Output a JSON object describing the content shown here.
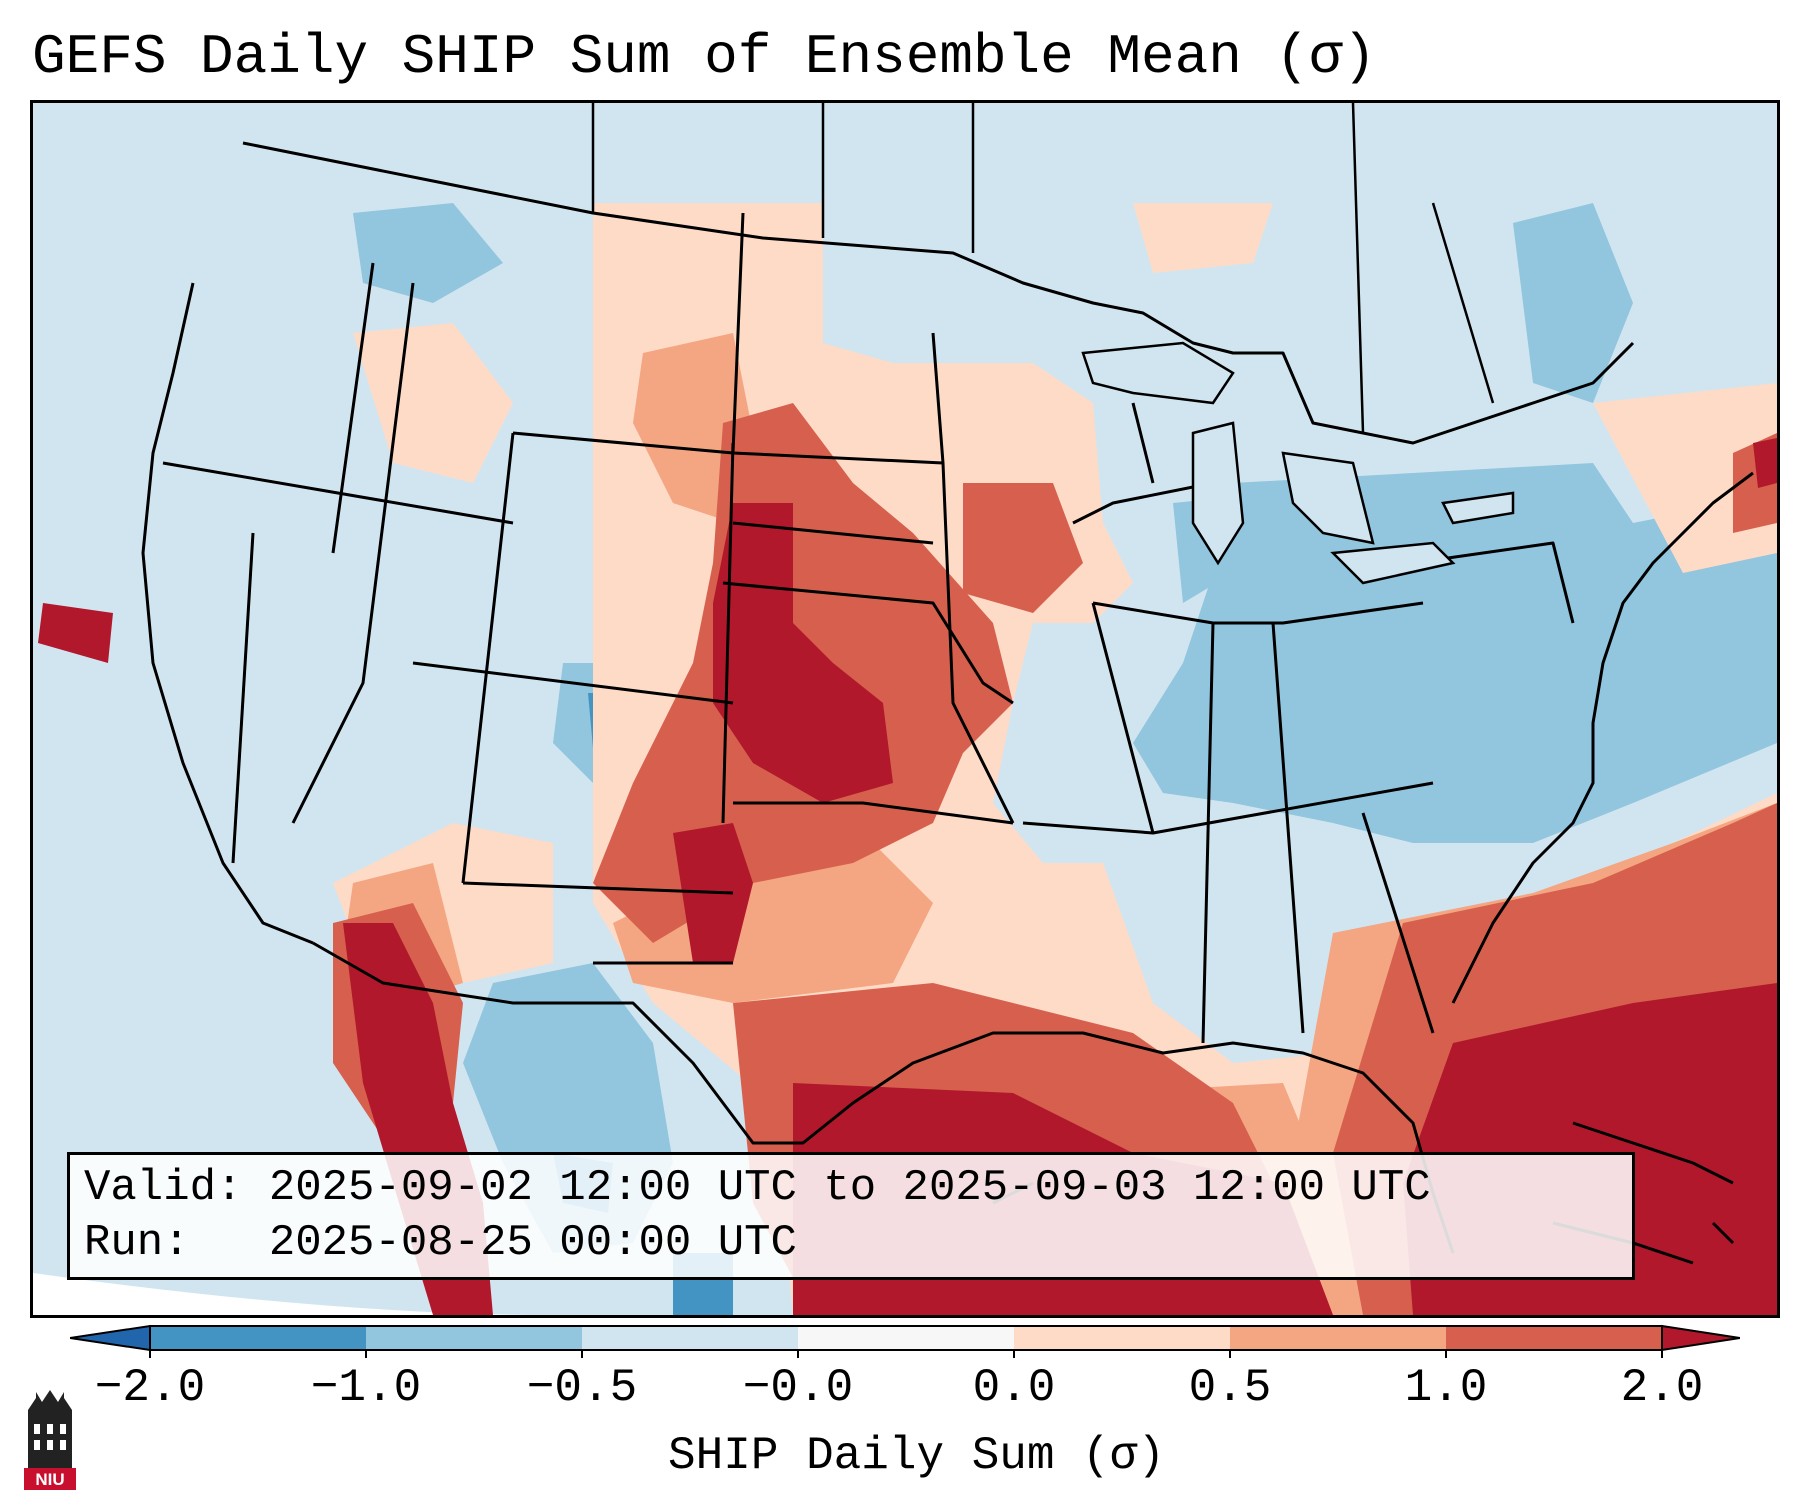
{
  "title": "GEFS Daily SHIP Sum of Ensemble Mean (σ)",
  "info": {
    "valid_label": "Valid:",
    "valid_value": "2025-09-02 12:00 UTC to 2025-09-03 12:00 UTC",
    "run_label": "Run:",
    "run_value": "2025-08-25 00:00 UTC"
  },
  "colorbar": {
    "label": "SHIP Daily Sum (σ)",
    "ticks": [
      "−2.0",
      "−1.0",
      "−0.5",
      "−0.0",
      "0.0",
      "0.5",
      "1.0",
      "2.0"
    ],
    "colors": [
      "#2166ac",
      "#4393c3",
      "#92c5de",
      "#d1e5f0",
      "#f7f7f7",
      "#fddbc7",
      "#f4a582",
      "#d6604d",
      "#b2182b"
    ]
  },
  "logo": {
    "text": "NIU",
    "color": "#c8102e"
  }
}
